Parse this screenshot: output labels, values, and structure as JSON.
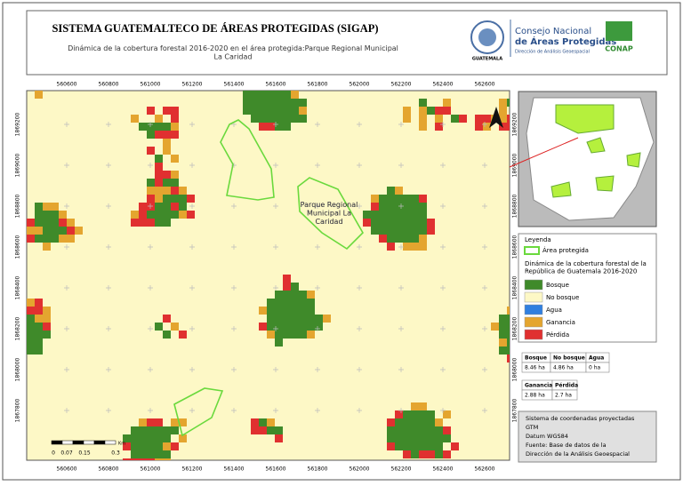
{
  "header": {
    "title": "SISTEMA GUATEMALTECO DE ÁREAS PROTEGIDAS  (SIGAP)",
    "subtitle": "Dinámica de la cobertura forestal 2016-2020 en el área protegida:Parque Regional Municipal La Caridad",
    "logo_left": "GUATEMALA",
    "logo_org_1": "Consejo Nacional",
    "logo_org_2": "de Áreas Protegidas",
    "logo_org_3": "Dirección de Análisis Geoespacial",
    "logo_right": "CONAP"
  },
  "map": {
    "x_labels": [
      "560600",
      "560800",
      "561000",
      "561200",
      "561400",
      "561600",
      "561800",
      "562000",
      "562200",
      "562400",
      "562600"
    ],
    "y_labels": [
      "1869200",
      "1869000",
      "1868800",
      "1868600",
      "1868400",
      "1868200",
      "1868000",
      "1867800"
    ],
    "area_label": "Parque Regional Municipal La Caridad",
    "scale_labels": [
      "0",
      "0.07",
      "0.15",
      "0.3"
    ],
    "scale_unit": "Km"
  },
  "legend": {
    "title": "Leyenda",
    "protected": "Área protegida",
    "subtitle": "Dinámica de la cobertura forestal de la República de Guatemala 2016-2020",
    "items": [
      "Bosque",
      "No bosque",
      "Agua",
      "Ganancia",
      "Pérdida"
    ]
  },
  "stats": {
    "table1": {
      "headers": [
        "Bosque",
        "No bosque",
        "Agua"
      ],
      "values": [
        "8.46 ha",
        "4.86 ha",
        "0 ha"
      ]
    },
    "table2": {
      "headers": [
        "Ganancia",
        "Pérdida"
      ],
      "values": [
        "2.88 ha",
        "2.7 ha"
      ]
    }
  },
  "info": [
    "Sistema de coordenadas proyectadas",
    "GTM",
    "Datum WGS84",
    "Fuente: Base de datos de la",
    "Dirección de la Análisis Geoespacial"
  ]
}
